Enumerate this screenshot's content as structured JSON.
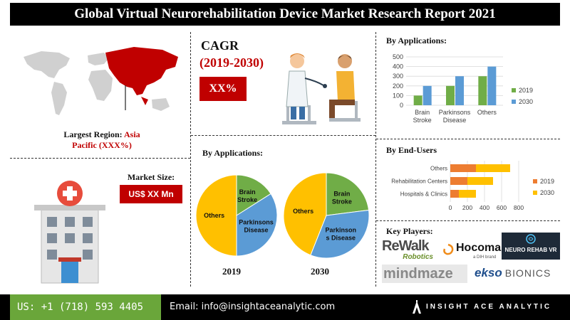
{
  "title": "Global Virtual Neurorehabilitation Device Market Research Report 2021",
  "largest_region": {
    "label": "Largest Region:",
    "value": "Asia",
    "value2": "Pacific (XXX%)"
  },
  "cagr": {
    "label": "CAGR",
    "period": "(2019-2030)",
    "value": "XX%"
  },
  "market_size": {
    "label": "Market Size:",
    "value": "US$ XX Mn"
  },
  "pies": {
    "heading": "By Applications:",
    "years": [
      "2019",
      "2030"
    ]
  },
  "key_players": {
    "heading": "Key Players:",
    "logos": [
      "ReWalk",
      "Robotics",
      "Hocoma",
      "a DIH brand",
      "NEURO REHAB VR",
      "mindmaze",
      "ekso",
      "BIONICS"
    ]
  },
  "footer": {
    "phone": "US: +1 (718) 593 4405",
    "email": "Email: info@insightaceanalytic.com",
    "brand": "INSIGHT ACE ANALYTIC"
  },
  "colors": {
    "dark_red": "#c00000",
    "green": "#70ad47",
    "blue": "#5b9bd5",
    "yellow": "#ffc000",
    "orange": "#ed7d31",
    "footer_green": "#6aa63a"
  },
  "chart_data": [
    {
      "type": "bar",
      "title": "By Applications:",
      "categories": [
        "Brain Stroke",
        "Parkinsons Disease",
        "Others"
      ],
      "category_lines": [
        [
          "Brain",
          "Stroke"
        ],
        [
          "Parkinsons",
          "Disease"
        ],
        [
          "Others"
        ]
      ],
      "series": [
        {
          "name": "2019",
          "color": "#70ad47",
          "values": [
            100,
            200,
            300
          ]
        },
        {
          "name": "2030",
          "color": "#5b9bd5",
          "values": [
            200,
            300,
            400
          ]
        }
      ],
      "ylim": [
        0,
        500
      ],
      "yticks": [
        0,
        100,
        200,
        300,
        400,
        500
      ],
      "legend": "right"
    },
    {
      "type": "bar",
      "orientation": "horizontal",
      "stacked": true,
      "title": "By End-Users",
      "categories": [
        "Others",
        "Rehabilitation Centers",
        "Hospitals & Clinics"
      ],
      "series": [
        {
          "name": "2019",
          "color": "#ed7d31",
          "values": [
            300,
            200,
            100
          ]
        },
        {
          "name": "2030",
          "color": "#ffc000",
          "values": [
            400,
            300,
            200
          ]
        }
      ],
      "xlim": [
        0,
        800
      ],
      "xticks": [
        0,
        200,
        400,
        600,
        800
      ],
      "legend": "right"
    },
    {
      "type": "pie",
      "title": "2019",
      "slices": [
        {
          "label": "Others",
          "value": 50,
          "color": "#ffc000",
          "lines": [
            "Others"
          ]
        },
        {
          "label": "Brain Stroke",
          "value": 16,
          "color": "#70ad47",
          "lines": [
            "Brain",
            "Stroke"
          ]
        },
        {
          "label": "Parkinsons Disease",
          "value": 34,
          "color": "#5b9bd5",
          "lines": [
            "Parkinsons",
            "Disease"
          ]
        }
      ]
    },
    {
      "type": "pie",
      "title": "2030",
      "slices": [
        {
          "label": "Others",
          "value": 44,
          "color": "#ffc000",
          "lines": [
            "Others"
          ]
        },
        {
          "label": "Brain Stroke",
          "value": 23,
          "color": "#70ad47",
          "lines": [
            "Brain",
            "Stroke"
          ]
        },
        {
          "label": "Parkinsons Disease",
          "value": 33,
          "color": "#5b9bd5",
          "lines": [
            "Parkinson",
            "s Disease"
          ]
        }
      ]
    }
  ]
}
